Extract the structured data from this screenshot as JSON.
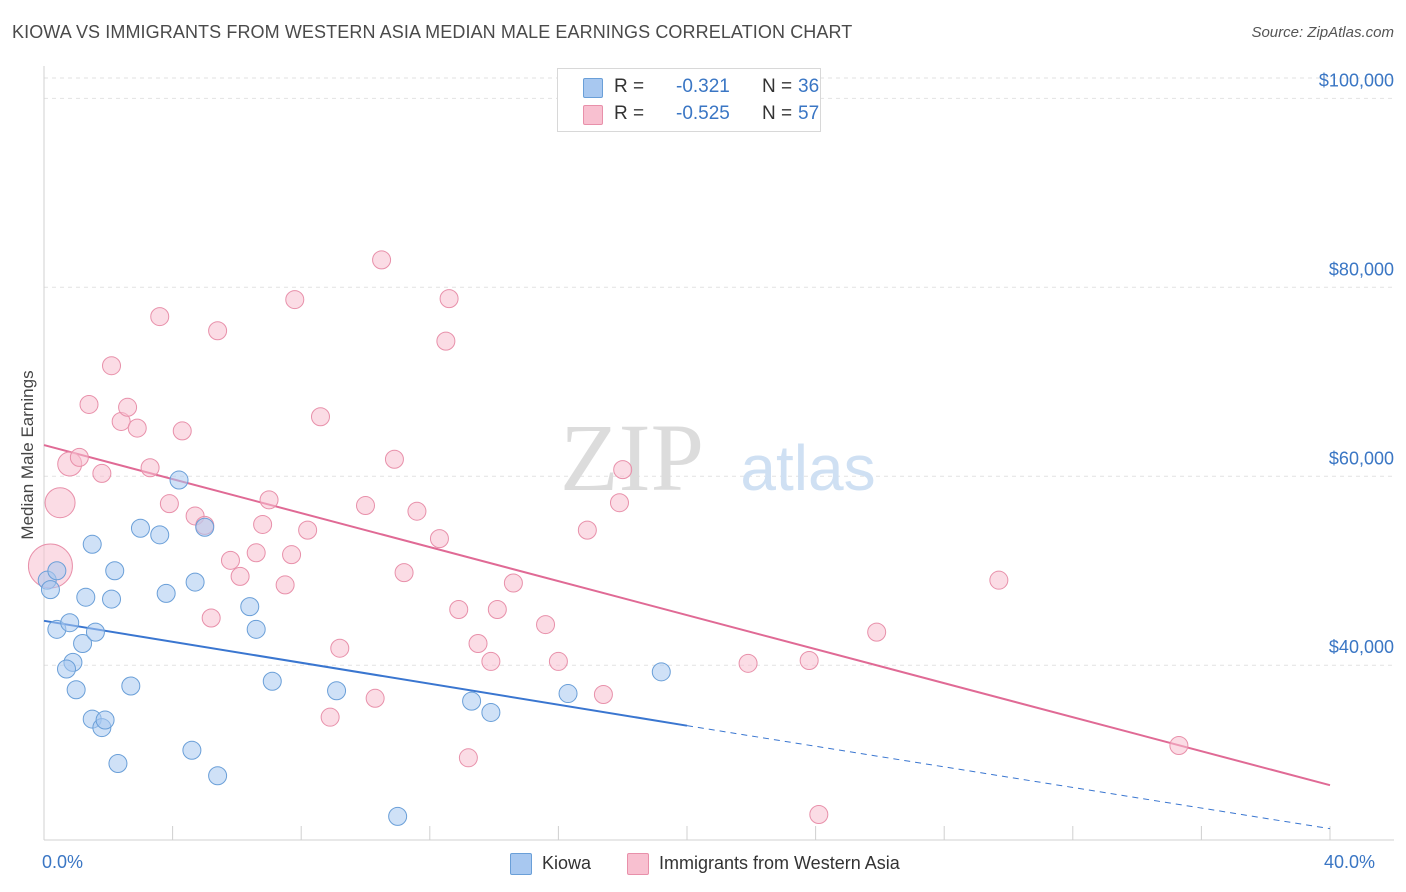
{
  "title": "KIOWA VS IMMIGRANTS FROM WESTERN ASIA MEDIAN MALE EARNINGS CORRELATION CHART",
  "source": "Source: ZipAtlas.com",
  "watermark": {
    "zip": "ZIP",
    "atlas": "atlas"
  },
  "stats": [
    {
      "r_label": "R =",
      "r_value": "-0.321",
      "n_label": "N =",
      "n_value": "36",
      "color": "#a8c8f0",
      "border": "#6a9fd8"
    },
    {
      "r_label": "R =",
      "r_value": "-0.525",
      "n_label": "N =",
      "n_value": "57",
      "color": "#f8c0d0",
      "border": "#e890aa"
    }
  ],
  "legend": [
    {
      "label": "Kiowa",
      "color": "#a8c8f0",
      "border": "#6a9fd8"
    },
    {
      "label": "Immigrants from Western Asia",
      "color": "#f8c0d0",
      "border": "#e890aa"
    }
  ],
  "chart_data": {
    "type": "scatter",
    "title": "KIOWA VS IMMIGRANTS FROM WESTERN ASIA MEDIAN MALE EARNINGS CORRELATION CHART",
    "xlabel": "",
    "ylabel": "Median Male Earnings",
    "xlim": [
      0,
      40
    ],
    "ylim": [
      21500,
      103000
    ],
    "x_tick_labels": [
      "0.0%",
      "40.0%"
    ],
    "y_ticks": [
      40000,
      60000,
      80000,
      100000
    ],
    "y_tick_labels": [
      "$40,000",
      "$60,000",
      "$80,000",
      "$100,000"
    ],
    "grid": true,
    "series": [
      {
        "name": "Kiowa",
        "color": "#a8c8f0",
        "stroke": "#6a9fd8",
        "line_color": "#3a76d0",
        "trend": {
          "x0": 0,
          "y0": 44700,
          "x1": 20,
          "y1": 33600,
          "x_dash_end": 40,
          "y_dash_end": 22700
        },
        "points": [
          [
            0.1,
            49000,
            9
          ],
          [
            0.2,
            48000,
            9
          ],
          [
            0.4,
            50000,
            9
          ],
          [
            0.4,
            43800,
            9
          ],
          [
            0.8,
            44500,
            9
          ],
          [
            0.9,
            40300,
            9
          ],
          [
            0.7,
            39600,
            9
          ],
          [
            1.0,
            37400,
            9
          ],
          [
            1.3,
            47200,
            9
          ],
          [
            1.2,
            42300,
            9
          ],
          [
            1.6,
            43500,
            9
          ],
          [
            1.5,
            34300,
            9
          ],
          [
            1.8,
            33400,
            9
          ],
          [
            1.9,
            34200,
            9
          ],
          [
            1.5,
            52800,
            9
          ],
          [
            2.1,
            47000,
            9
          ],
          [
            2.2,
            50000,
            9
          ],
          [
            2.3,
            29600,
            9
          ],
          [
            2.7,
            37800,
            9
          ],
          [
            3.0,
            54500,
            9
          ],
          [
            3.6,
            53800,
            9
          ],
          [
            3.8,
            47600,
            9
          ],
          [
            4.2,
            59600,
            9
          ],
          [
            4.7,
            48800,
            9
          ],
          [
            5.0,
            54600,
            9
          ],
          [
            4.6,
            31000,
            9
          ],
          [
            5.4,
            28300,
            9
          ],
          [
            6.4,
            46200,
            9
          ],
          [
            6.6,
            43800,
            9
          ],
          [
            7.1,
            38300,
            9
          ],
          [
            9.1,
            37300,
            9
          ],
          [
            11.0,
            24000,
            9
          ],
          [
            13.3,
            36200,
            9
          ],
          [
            13.9,
            35000,
            9
          ],
          [
            16.3,
            37000,
            9
          ],
          [
            19.2,
            39300,
            9
          ]
        ]
      },
      {
        "name": "Immigrants from Western Asia",
        "color": "#f8c0d0",
        "stroke": "#e890aa",
        "line_color": "#e06a95",
        "trend": {
          "x0": 0,
          "y0": 63300,
          "x1": 40,
          "y1": 27300
        },
        "points": [
          [
            0.2,
            50500,
            22
          ],
          [
            0.5,
            57200,
            15
          ],
          [
            0.8,
            61300,
            12
          ],
          [
            1.1,
            62000,
            9
          ],
          [
            1.4,
            67600,
            9
          ],
          [
            1.8,
            60300,
            9
          ],
          [
            2.1,
            71700,
            9
          ],
          [
            2.4,
            65800,
            9
          ],
          [
            2.6,
            67300,
            9
          ],
          [
            2.9,
            65100,
            9
          ],
          [
            3.3,
            60900,
            9
          ],
          [
            3.6,
            76900,
            9
          ],
          [
            3.9,
            57100,
            9
          ],
          [
            4.3,
            64800,
            9
          ],
          [
            4.7,
            55800,
            9
          ],
          [
            5.0,
            54800,
            9
          ],
          [
            5.2,
            45000,
            9
          ],
          [
            5.4,
            75400,
            9
          ],
          [
            5.8,
            51100,
            9
          ],
          [
            6.1,
            49400,
            9
          ],
          [
            6.6,
            51900,
            9
          ],
          [
            6.8,
            54900,
            9
          ],
          [
            7.0,
            57500,
            9
          ],
          [
            7.5,
            48500,
            9
          ],
          [
            7.7,
            51700,
            9
          ],
          [
            7.8,
            78700,
            9
          ],
          [
            8.2,
            54300,
            9
          ],
          [
            8.6,
            66300,
            9
          ],
          [
            8.9,
            34500,
            9
          ],
          [
            9.2,
            41800,
            9
          ],
          [
            10.0,
            56900,
            9
          ],
          [
            10.3,
            36500,
            9
          ],
          [
            10.5,
            82900,
            9
          ],
          [
            10.9,
            61800,
            9
          ],
          [
            11.2,
            49800,
            9
          ],
          [
            11.6,
            56300,
            9
          ],
          [
            12.3,
            53400,
            9
          ],
          [
            12.5,
            74300,
            9
          ],
          [
            12.6,
            78800,
            9
          ],
          [
            12.9,
            45900,
            9
          ],
          [
            13.2,
            30200,
            9
          ],
          [
            13.5,
            42300,
            9
          ],
          [
            13.9,
            40400,
            9
          ],
          [
            14.1,
            45900,
            9
          ],
          [
            14.6,
            48700,
            9
          ],
          [
            15.6,
            44300,
            9
          ],
          [
            16.0,
            40400,
            9
          ],
          [
            16.9,
            54300,
            9
          ],
          [
            17.4,
            36900,
            9
          ],
          [
            17.9,
            57200,
            9
          ],
          [
            18.0,
            60700,
            9
          ],
          [
            21.9,
            40200,
            9
          ],
          [
            23.8,
            40500,
            9
          ],
          [
            24.1,
            24200,
            9
          ],
          [
            25.9,
            43500,
            9
          ],
          [
            29.7,
            49000,
            9
          ],
          [
            35.3,
            31500,
            9
          ]
        ]
      }
    ]
  }
}
